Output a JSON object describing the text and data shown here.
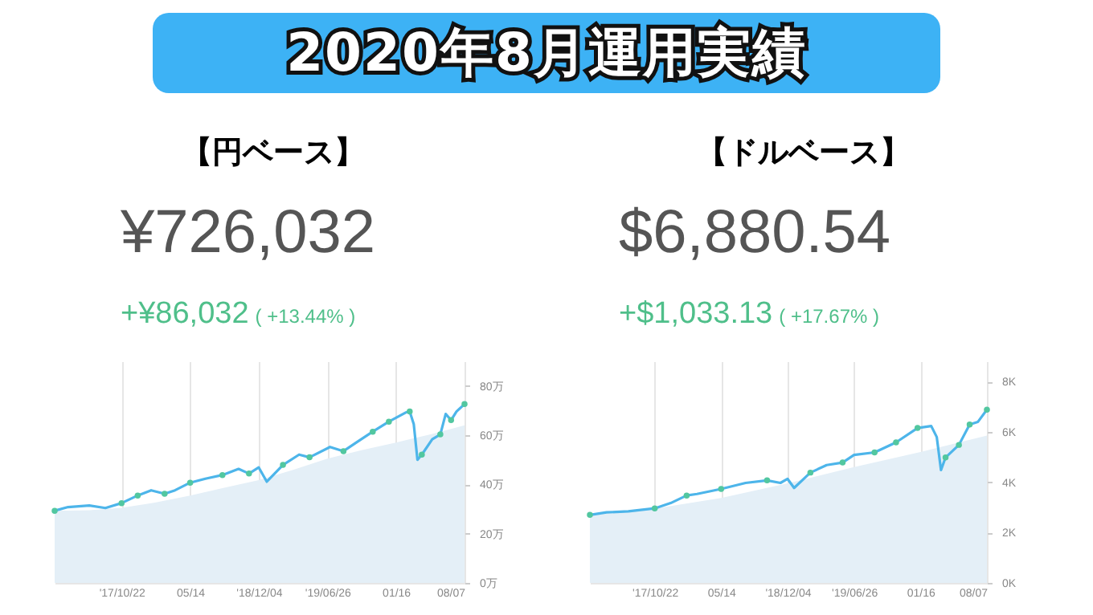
{
  "chart_data": [
    {
      "type": "line",
      "title": "【円ベース】",
      "subtitle": "¥726,032",
      "annotations": [
        "2020年8月運用実績",
        "+¥86,032",
        "( +13.44% )"
      ],
      "xlim": [
        "2017-04-06",
        "2020-08-07"
      ],
      "xticks": [
        {
          "value": "2017-10-22",
          "label": "'17/10/22"
        },
        {
          "value": "2018-05-14",
          "label": "05/14"
        },
        {
          "value": "2018-12-04",
          "label": "'18/12/04"
        },
        {
          "value": "2019-06-26",
          "label": "'19/06/26"
        },
        {
          "value": "2020-01-16",
          "label": "01/16"
        },
        {
          "value": "2020-08-07",
          "label": "08/07"
        }
      ],
      "ylim": [
        0,
        90
      ],
      "yticks": [
        {
          "value": 0,
          "label": "0万"
        },
        {
          "value": 20,
          "label": "20万"
        },
        {
          "value": 40,
          "label": "40万"
        },
        {
          "value": 60,
          "label": "60万"
        },
        {
          "value": 80,
          "label": "80万"
        }
      ],
      "grid": "x",
      "series": [
        {
          "type": "area",
          "color": "#e4eff7",
          "x": [
            "2017-04-06",
            "2017-07-18",
            "2017-10-22",
            "2018-01-26",
            "2018-05-14",
            "2018-08-18",
            "2018-12-04",
            "2019-03-18",
            "2019-06-26",
            "2019-10-08",
            "2020-01-16",
            "2020-05-03",
            "2020-08-07"
          ],
          "values": [
            29.3,
            29.5,
            30.5,
            32.5,
            35.5,
            38.5,
            41.7,
            46,
            50.5,
            54,
            57,
            60.5,
            64
          ]
        },
        {
          "type": "line",
          "color": "#4db5ea",
          "x": [
            "2017-04-06",
            "2017-05-16",
            "2017-07-18",
            "2017-09-04",
            "2017-10-22",
            "2017-12-09",
            "2018-01-18",
            "2018-02-27",
            "2018-03-30",
            "2018-05-14",
            "2018-07-01",
            "2018-08-18",
            "2018-10-05",
            "2018-11-05",
            "2018-12-04",
            "2018-12-28",
            "2019-02-14",
            "2019-04-03",
            "2019-05-04",
            "2019-07-04",
            "2019-08-13",
            "2019-09-22",
            "2019-11-08",
            "2019-12-26",
            "2020-02-14",
            "2020-02-26",
            "2020-03-09",
            "2020-03-20",
            "2020-04-02",
            "2020-05-03",
            "2020-05-27",
            "2020-06-12",
            "2020-06-28",
            "2020-07-14",
            "2020-08-07"
          ],
          "values": [
            29.3,
            30.8,
            31.4,
            30.4,
            32.4,
            35.5,
            37.6,
            36.2,
            37.6,
            40.7,
            42.4,
            43.8,
            46.3,
            44.4,
            46.9,
            41.1,
            47.9,
            52.1,
            51,
            55.2,
            53.5,
            57.2,
            61.4,
            65.5,
            69.2,
            69.6,
            64.5,
            50,
            52.1,
            58.3,
            60.3,
            68.6,
            66.1,
            69.6,
            72.6
          ]
        },
        {
          "type": "scatter",
          "color": "#52c7a0",
          "x": [
            "2017-04-06",
            "2017-10-22",
            "2017-12-09",
            "2018-02-27",
            "2018-05-14",
            "2018-08-18",
            "2018-11-05",
            "2019-02-14",
            "2019-05-04",
            "2019-08-13",
            "2019-11-08",
            "2019-12-26",
            "2020-02-26",
            "2020-04-02",
            "2020-05-27",
            "2020-06-28",
            "2020-08-07"
          ],
          "values": [
            29.3,
            32.4,
            35.5,
            36.2,
            40.7,
            43.8,
            44.4,
            47.9,
            51,
            53.5,
            61.4,
            65.5,
            69.6,
            52.1,
            60.3,
            66.1,
            72.6
          ]
        }
      ]
    },
    {
      "type": "line",
      "title": "【ドルベース】",
      "subtitle": "$6,880.54",
      "annotations": [
        "+$1,033.13",
        "( +17.67% )"
      ],
      "xlim": [
        "2017-04-06",
        "2020-08-07"
      ],
      "xticks": [
        {
          "value": "2017-10-22",
          "label": "'17/10/22"
        },
        {
          "value": "2018-05-14",
          "label": "05/14"
        },
        {
          "value": "2018-12-04",
          "label": "'18/12/04"
        },
        {
          "value": "2019-06-26",
          "label": "'19/06/26"
        },
        {
          "value": "2020-01-16",
          "label": "01/16"
        },
        {
          "value": "2020-08-07",
          "label": "08/07"
        }
      ],
      "ylim": [
        0,
        8.8
      ],
      "yticks": [
        {
          "value": 0,
          "label": "0K"
        },
        {
          "value": 2,
          "label": "2K"
        },
        {
          "value": 4,
          "label": "4K"
        },
        {
          "value": 6,
          "label": "6K"
        },
        {
          "value": 8,
          "label": "8K"
        }
      ],
      "grid": "x",
      "series": [
        {
          "type": "area",
          "color": "#e4eff7",
          "x": [
            "2017-04-06",
            "2017-10-22",
            "2018-05-14",
            "2018-12-04",
            "2019-06-26",
            "2020-01-16",
            "2020-08-07"
          ],
          "values": [
            2.7,
            2.95,
            3.37,
            3.95,
            4.6,
            5.2,
            5.85
          ]
        },
        {
          "type": "line",
          "color": "#4db5ea",
          "x": [
            "2017-04-06",
            "2017-05-27",
            "2017-08-02",
            "2017-10-22",
            "2017-12-10",
            "2018-01-28",
            "2018-03-01",
            "2018-05-14",
            "2018-07-28",
            "2018-10-02",
            "2018-11-12",
            "2018-12-04",
            "2018-12-24",
            "2019-02-12",
            "2019-04-03",
            "2019-05-22",
            "2019-06-26",
            "2019-08-28",
            "2019-11-02",
            "2020-01-07",
            "2020-02-18",
            "2020-03-06",
            "2020-03-19",
            "2020-04-02",
            "2020-05-13",
            "2020-06-15",
            "2020-07-10",
            "2020-08-07"
          ],
          "values": [
            2.7,
            2.8,
            2.84,
            2.96,
            3.17,
            3.47,
            3.53,
            3.73,
            3.97,
            4.07,
            3.97,
            4.13,
            3.77,
            4.38,
            4.68,
            4.78,
            5.08,
            5.18,
            5.58,
            6.15,
            6.23,
            5.79,
            4.48,
            4.98,
            5.48,
            6.29,
            6.39,
            6.88
          ]
        },
        {
          "type": "scatter",
          "color": "#52c7a0",
          "x": [
            "2017-04-06",
            "2017-10-22",
            "2018-01-28",
            "2018-05-14",
            "2018-10-02",
            "2019-02-12",
            "2019-05-22",
            "2019-08-28",
            "2019-11-02",
            "2020-01-07",
            "2020-04-02",
            "2020-05-13",
            "2020-06-15",
            "2020-08-07"
          ],
          "values": [
            2.7,
            2.96,
            3.47,
            3.73,
            4.07,
            4.38,
            4.78,
            5.18,
            5.58,
            6.15,
            4.98,
            5.48,
            6.29,
            6.88
          ]
        }
      ]
    }
  ]
}
